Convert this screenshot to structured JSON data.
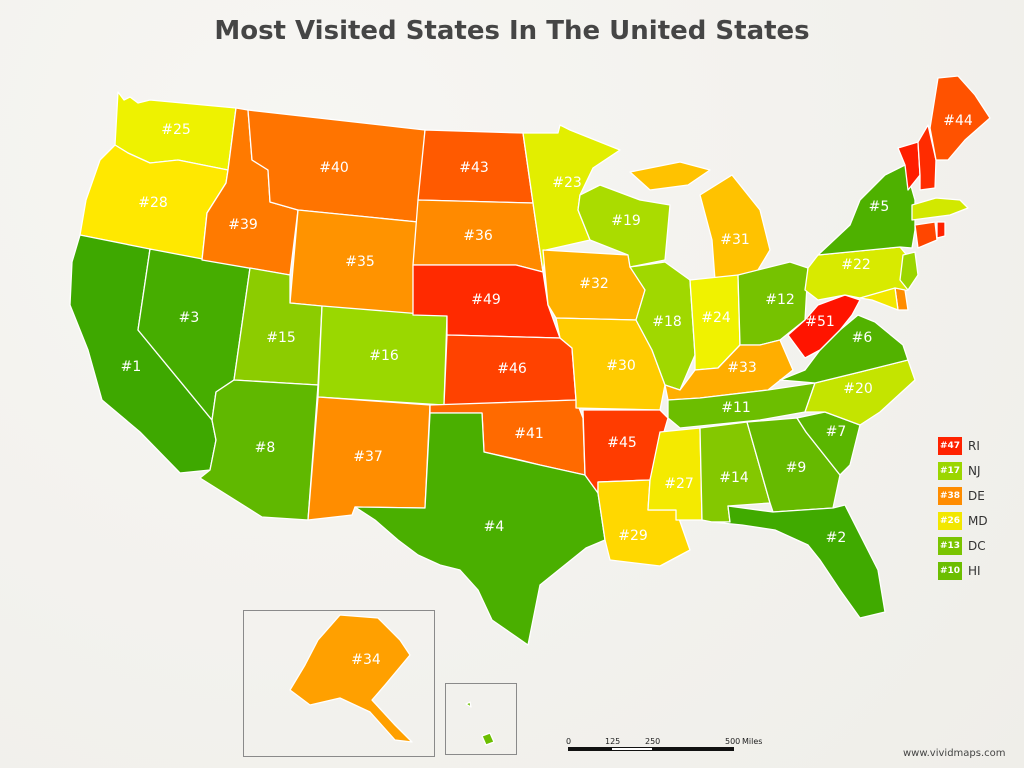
{
  "title": "Most Visited States In The United States",
  "watermark": "www.vividmaps.com",
  "scale": {
    "t0": "0",
    "t1": "125",
    "t2": "250",
    "t3": "500",
    "unit": "Miles"
  },
  "legend": [
    {
      "rank": "#47",
      "state": "RI",
      "color": "#ff2200"
    },
    {
      "rank": "#17",
      "state": "NJ",
      "color": "#9bd600"
    },
    {
      "rank": "#38",
      "state": "DE",
      "color": "#ff8c00"
    },
    {
      "rank": "#26",
      "state": "MD",
      "color": "#f2e700"
    },
    {
      "rank": "#13",
      "state": "DC",
      "color": "#7ac400"
    },
    {
      "rank": "#10",
      "state": "HI",
      "color": "#6cbe00"
    }
  ],
  "states": [
    {
      "abbr": "WA",
      "rank": "#25",
      "color": "#eef200"
    },
    {
      "abbr": "OR",
      "rank": "#28",
      "color": "#ffe800"
    },
    {
      "abbr": "CA",
      "rank": "#1",
      "color": "#3ea800"
    },
    {
      "abbr": "NV",
      "rank": "#3",
      "color": "#46ad00"
    },
    {
      "abbr": "ID",
      "rank": "#39",
      "color": "#ff7a00"
    },
    {
      "abbr": "MT",
      "rank": "#40",
      "color": "#ff7400"
    },
    {
      "abbr": "WY",
      "rank": "#35",
      "color": "#ff9300"
    },
    {
      "abbr": "UT",
      "rank": "#15",
      "color": "#8ccc00"
    },
    {
      "abbr": "AZ",
      "rank": "#8",
      "color": "#60b800"
    },
    {
      "abbr": "CO",
      "rank": "#16",
      "color": "#9ad800"
    },
    {
      "abbr": "NM",
      "rank": "#37",
      "color": "#ff8d00"
    },
    {
      "abbr": "ND",
      "rank": "#43",
      "color": "#ff5a00"
    },
    {
      "abbr": "SD",
      "rank": "#36",
      "color": "#ff8a00"
    },
    {
      "abbr": "NE",
      "rank": "#49",
      "color": "#ff2a00"
    },
    {
      "abbr": "KS",
      "rank": "#46",
      "color": "#ff4200"
    },
    {
      "abbr": "OK",
      "rank": "#41",
      "color": "#ff6a00"
    },
    {
      "abbr": "TX",
      "rank": "#4",
      "color": "#4aaf00"
    },
    {
      "abbr": "MN",
      "rank": "#23",
      "color": "#e2ee00"
    },
    {
      "abbr": "IA",
      "rank": "#32",
      "color": "#ffb200"
    },
    {
      "abbr": "MO",
      "rank": "#30",
      "color": "#ffcc00"
    },
    {
      "abbr": "AR",
      "rank": "#45",
      "color": "#ff3c00"
    },
    {
      "abbr": "LA",
      "rank": "#29",
      "color": "#ffd800"
    },
    {
      "abbr": "WI",
      "rank": "#19",
      "color": "#aadc00"
    },
    {
      "abbr": "IL",
      "rank": "#18",
      "color": "#a0d800"
    },
    {
      "abbr": "MI",
      "rank": "#31",
      "color": "#ffc200"
    },
    {
      "abbr": "IN",
      "rank": "#24",
      "color": "#f0f200"
    },
    {
      "abbr": "OH",
      "rank": "#12",
      "color": "#76c200"
    },
    {
      "abbr": "KY",
      "rank": "#33",
      "color": "#ffae00"
    },
    {
      "abbr": "TN",
      "rank": "#11",
      "color": "#6cbe00"
    },
    {
      "abbr": "MS",
      "rank": "#27",
      "color": "#f4ea00"
    },
    {
      "abbr": "AL",
      "rank": "#14",
      "color": "#84c800"
    },
    {
      "abbr": "GA",
      "rank": "#9",
      "color": "#66ba00"
    },
    {
      "abbr": "FL",
      "rank": "#2",
      "color": "#40aa00"
    },
    {
      "abbr": "SC",
      "rank": "#7",
      "color": "#5ab600"
    },
    {
      "abbr": "NC",
      "rank": "#20",
      "color": "#c4e400"
    },
    {
      "abbr": "VA",
      "rank": "#6",
      "color": "#52b200"
    },
    {
      "abbr": "WV",
      "rank": "#51",
      "color": "#ff1400"
    },
    {
      "abbr": "PA",
      "rank": "#22",
      "color": "#d8ea00"
    },
    {
      "abbr": "NY",
      "rank": "#5",
      "color": "#4eb100"
    },
    {
      "abbr": "VT",
      "rank": "",
      "color": "#ff1e00"
    },
    {
      "abbr": "NH",
      "rank": "",
      "color": "#ff2c00"
    },
    {
      "abbr": "ME",
      "rank": "#44",
      "color": "#ff5200"
    },
    {
      "abbr": "MA",
      "rank": "",
      "color": "#d2e800"
    },
    {
      "abbr": "CT",
      "rank": "",
      "color": "#ff4600"
    },
    {
      "abbr": "RI",
      "rank": "",
      "color": "#ff2200"
    },
    {
      "abbr": "NJ",
      "rank": "",
      "color": "#9bd600"
    },
    {
      "abbr": "DE",
      "rank": "",
      "color": "#ff8c00"
    },
    {
      "abbr": "MD",
      "rank": "",
      "color": "#f2e700"
    },
    {
      "abbr": "AK",
      "rank": "#34",
      "color": "#ffa000"
    },
    {
      "abbr": "HI",
      "rank": "",
      "color": "#6cbe00"
    }
  ]
}
